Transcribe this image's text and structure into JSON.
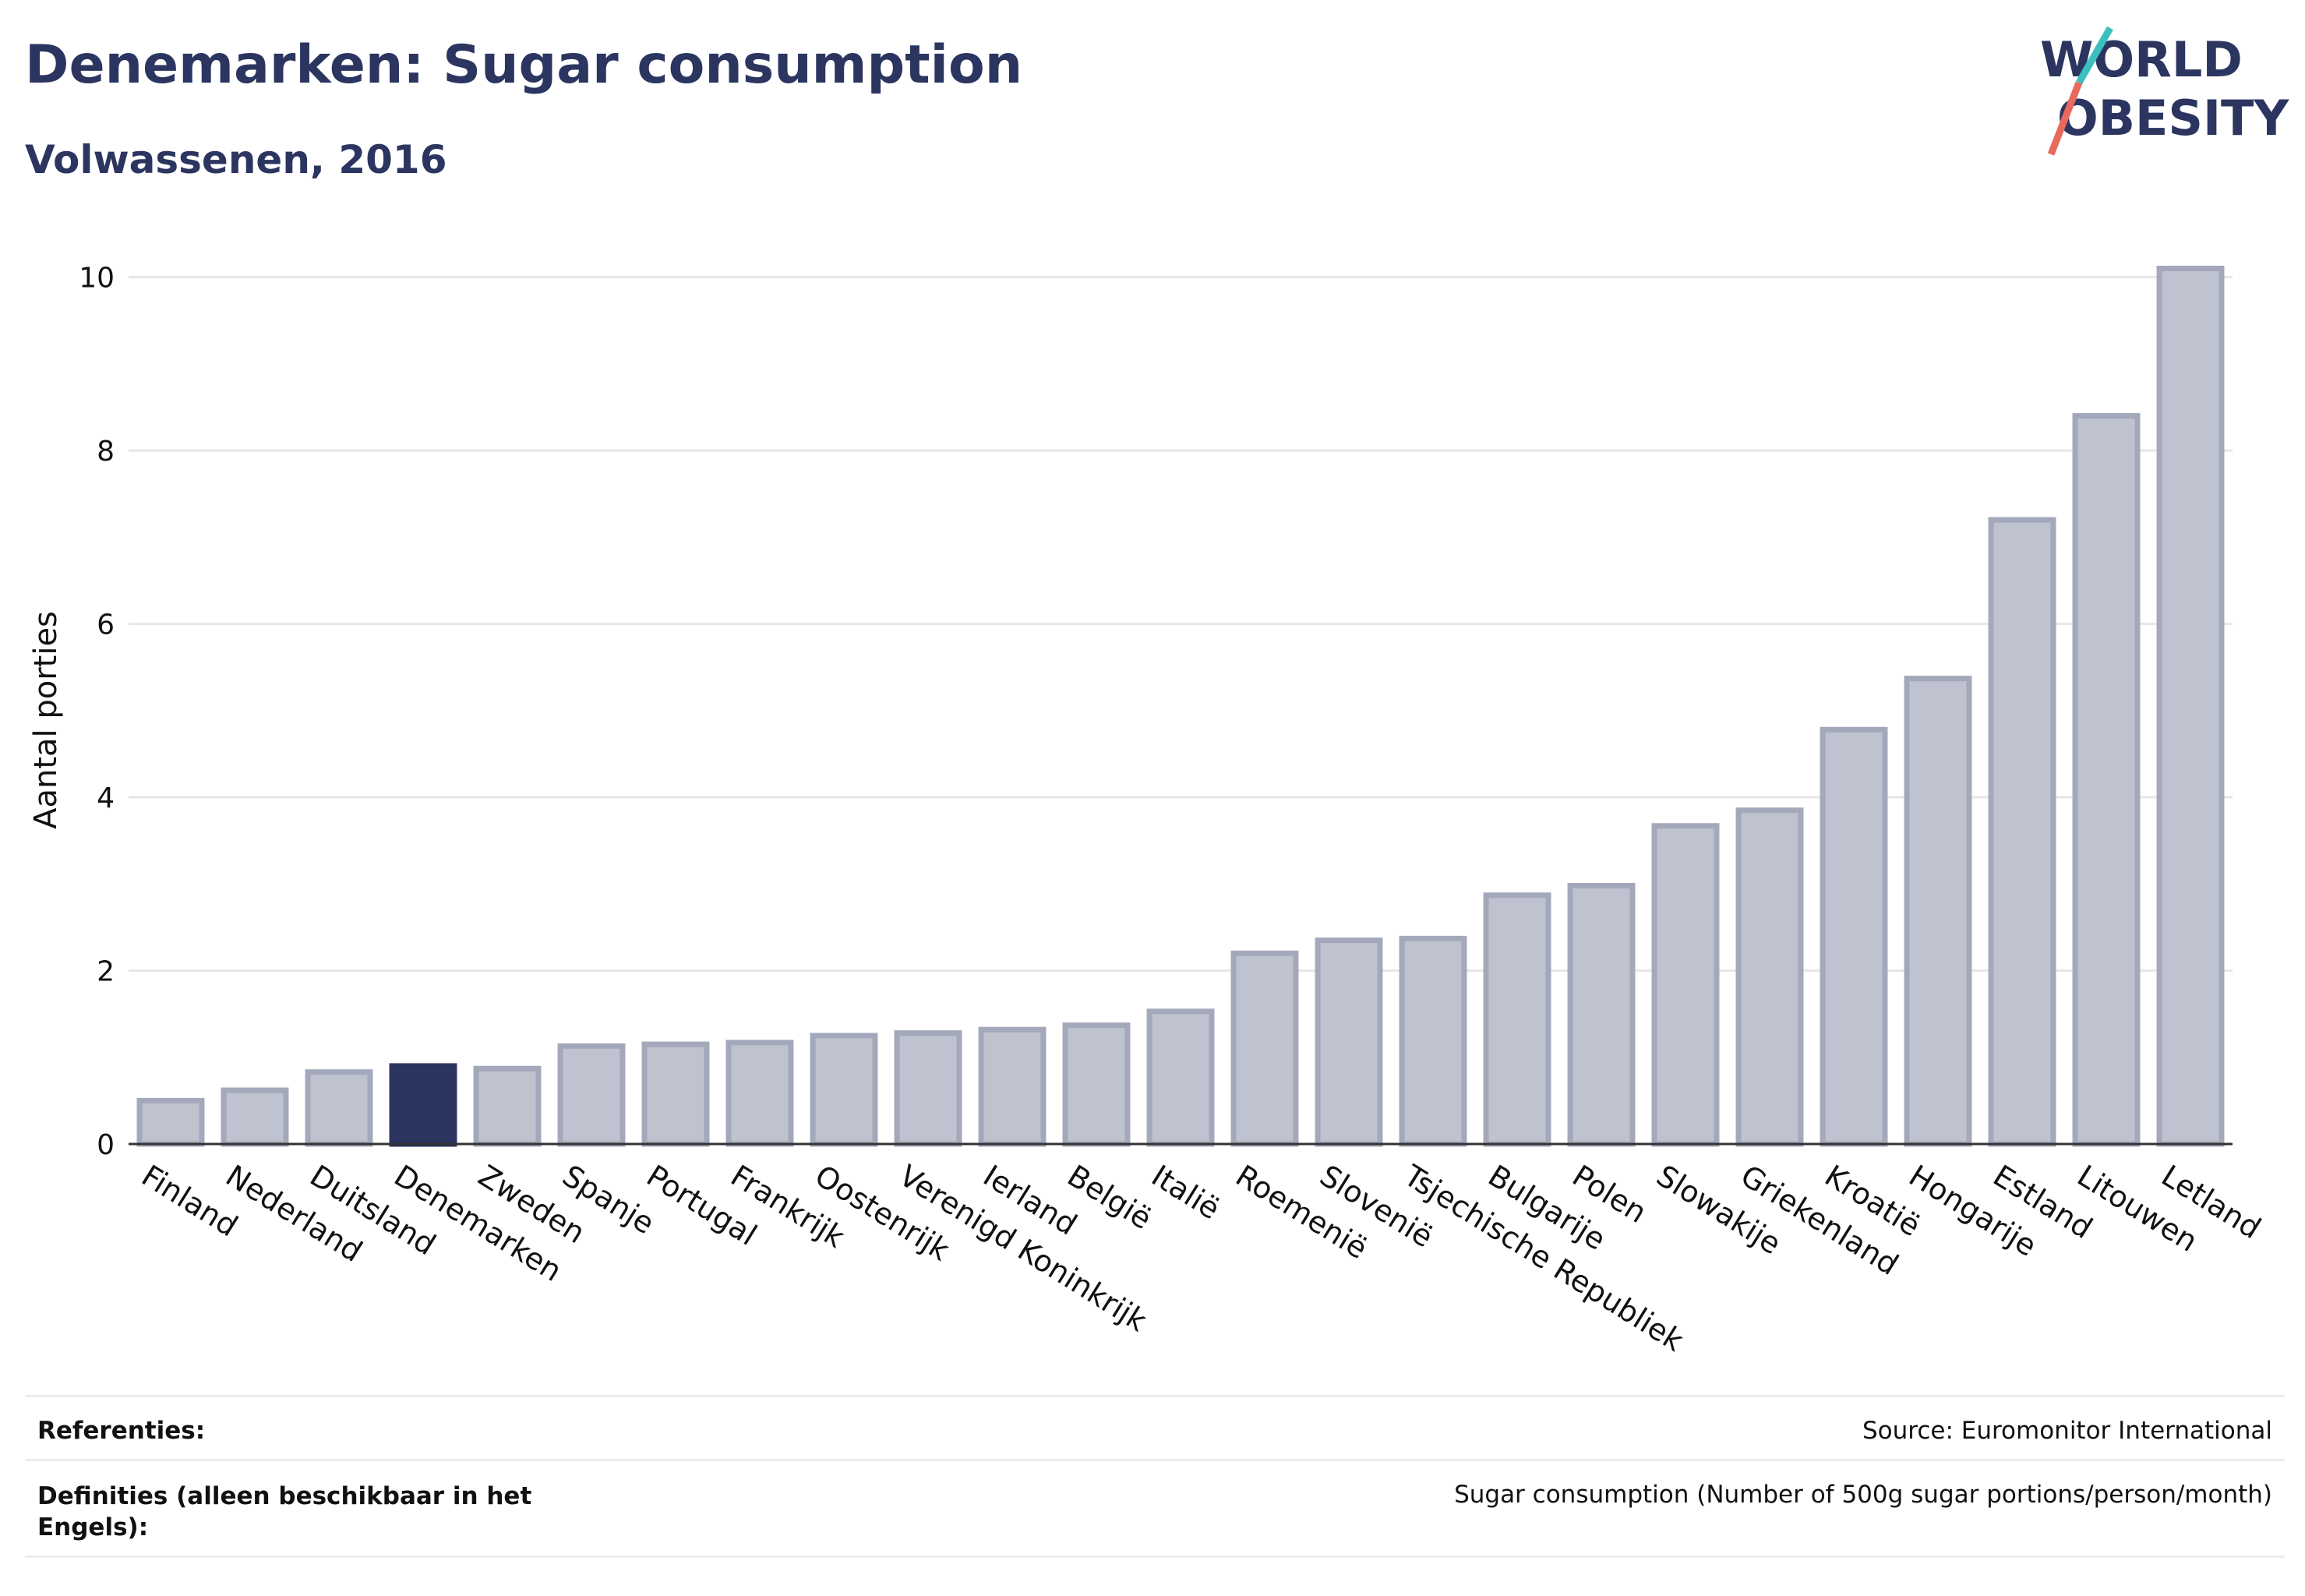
{
  "header": {
    "title": "Denemarken: Sugar consumption",
    "subtitle": "Volwassenen, 2016"
  },
  "logo": {
    "line1": "WORLD",
    "line2": "OBESITY"
  },
  "chart_data": {
    "type": "bar",
    "ylabel": "Aantal porties",
    "ylim": [
      0,
      10.5
    ],
    "yticks": [
      0,
      2,
      4,
      6,
      8,
      10
    ],
    "grid": true,
    "categories": [
      "Finland",
      "Nederland",
      "Duitsland",
      "Denemarken",
      "Zweden",
      "Spanje",
      "Portugal",
      "Frankrijk",
      "Oostenrijk",
      "Verenigd Koninkrijk",
      "Ierland",
      "België",
      "Italië",
      "Roemenië",
      "Slovenië",
      "Tsjechische Republiek",
      "Bulgarije",
      "Polen",
      "Slowakije",
      "Griekenland",
      "Kroatië",
      "Hongarije",
      "Estland",
      "Litouwen",
      "Letland"
    ],
    "values": [
      0.5,
      0.62,
      0.83,
      0.9,
      0.87,
      1.13,
      1.15,
      1.17,
      1.25,
      1.28,
      1.32,
      1.37,
      1.53,
      2.2,
      2.35,
      2.37,
      2.87,
      2.98,
      3.67,
      3.85,
      4.78,
      5.37,
      7.2,
      8.4,
      10.1
    ],
    "highlight": "Denemarken",
    "colors": {
      "bar": "#bfc2cf",
      "bar_border": "#a4a8bb",
      "highlight": "#2b3560",
      "grid": "#e6e6e6"
    }
  },
  "footer": {
    "references_label": "Referenties:",
    "references_value": "Source: Euromonitor International",
    "definitions_label": "Definities (alleen beschikbaar in het Engels):",
    "definitions_value": "Sugar consumption (Number of 500g sugar portions/person/month)"
  }
}
